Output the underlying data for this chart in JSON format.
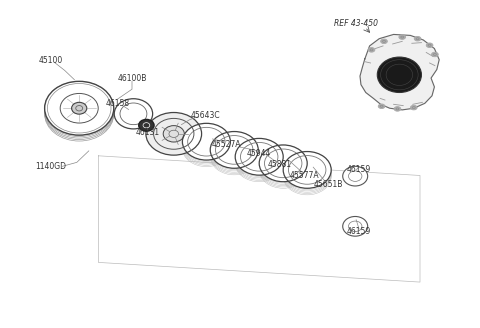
{
  "bg_color": "#ffffff",
  "line_color": "#555555",
  "label_color": "#333333",
  "fig_width": 4.8,
  "fig_height": 3.28,
  "dpi": 100,
  "ref_label": "REF 43-450",
  "parts_labels": [
    "45100",
    "46100B",
    "46158",
    "46131",
    "1140GD",
    "45643C",
    "45527A",
    "45944",
    "45881",
    "45577A",
    "45651B",
    "46159",
    "46159"
  ]
}
